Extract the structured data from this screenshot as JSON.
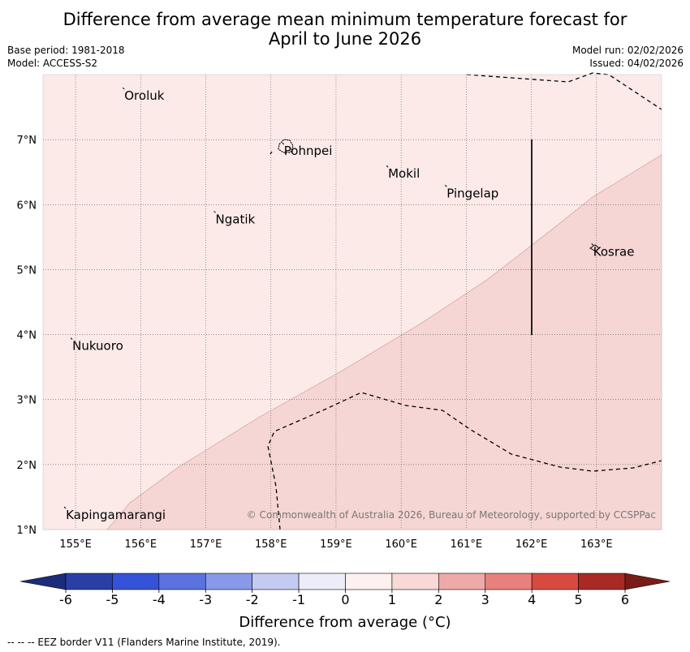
{
  "header": {
    "title_line1": "Difference from average mean minimum temperature forecast for",
    "title_line2": "April to June 2026",
    "base_period": "Base period: 1981-2018",
    "model": "Model: ACCESS-S2",
    "model_run": "Model run: 02/02/2026",
    "issued": "Issued: 04/02/2026"
  },
  "map": {
    "lon_ticks": [
      "155°E",
      "156°E",
      "157°E",
      "158°E",
      "159°E",
      "160°E",
      "161°E",
      "162°E",
      "163°E"
    ],
    "lat_ticks": [
      "7°N",
      "6°N",
      "5°N",
      "4°N",
      "3°N",
      "2°N",
      "1°N"
    ],
    "places": [
      {
        "name": "Oroluk",
        "lon": 155.75,
        "lat": 7.7
      },
      {
        "name": "Pohnpei",
        "lon": 158.2,
        "lat": 6.85
      },
      {
        "name": "Mokil",
        "lon": 159.8,
        "lat": 6.5
      },
      {
        "name": "Pingelap",
        "lon": 160.7,
        "lat": 6.2
      },
      {
        "name": "Ngatik",
        "lon": 157.15,
        "lat": 5.8
      },
      {
        "name": "Kosrae",
        "lon": 162.95,
        "lat": 5.3
      },
      {
        "name": "Nukuoro",
        "lon": 154.95,
        "lat": 3.85
      },
      {
        "name": "Kapingamarangi",
        "lon": 154.85,
        "lat": 1.25
      }
    ],
    "regions": [
      {
        "range": "0 to 1",
        "color": "#fbeae8"
      },
      {
        "range": "1 to 2",
        "color": "#f5d6d4"
      }
    ],
    "copyright": "© Commonwealth of Australia 2026, Bureau of Meteorology, supported by CCSPPac"
  },
  "colorbar": {
    "ticks": [
      "-6",
      "-5",
      "-4",
      "-3",
      "-2",
      "-1",
      "0",
      "1",
      "2",
      "3",
      "4",
      "5",
      "6"
    ],
    "colors": [
      "#2a3fa6",
      "#3553d9",
      "#5a73e0",
      "#8799e8",
      "#c3cbf3",
      "#ececfa",
      "#fdf0ef",
      "#f8d9d6",
      "#eeaaa7",
      "#e8817b",
      "#d84a40",
      "#a92a25"
    ],
    "under_color": "#1d2c7a",
    "over_color": "#7a1b17",
    "label": "Difference from average (°C)"
  },
  "footer": {
    "eez_note": "--  --  -- EEZ border V11 (Flanders Marine Institute, 2019)."
  }
}
